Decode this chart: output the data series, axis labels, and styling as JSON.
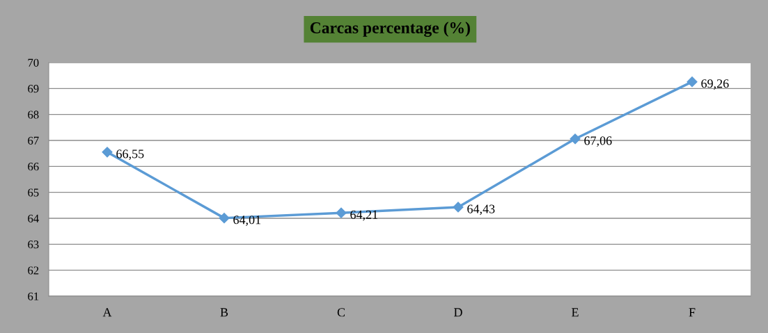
{
  "chart_data": {
    "type": "line",
    "title": "Carcas percentage (%)",
    "categories": [
      "A",
      "B",
      "C",
      "D",
      "E",
      "F"
    ],
    "series": [
      {
        "color": "#5b9bd5",
        "values": [
          66.55,
          64.01,
          64.21,
          64.43,
          67.06,
          69.26
        ],
        "value_labels": [
          "66,55",
          "64,01",
          "64,21",
          "64,43",
          "67,06",
          "69,26"
        ]
      }
    ],
    "ylim": [
      61,
      70
    ],
    "yticks": [
      61,
      62,
      63,
      64,
      65,
      66,
      67,
      68,
      69,
      70
    ],
    "grid": "y",
    "marker": "diamond",
    "line_style": "solid",
    "legend": false
  }
}
